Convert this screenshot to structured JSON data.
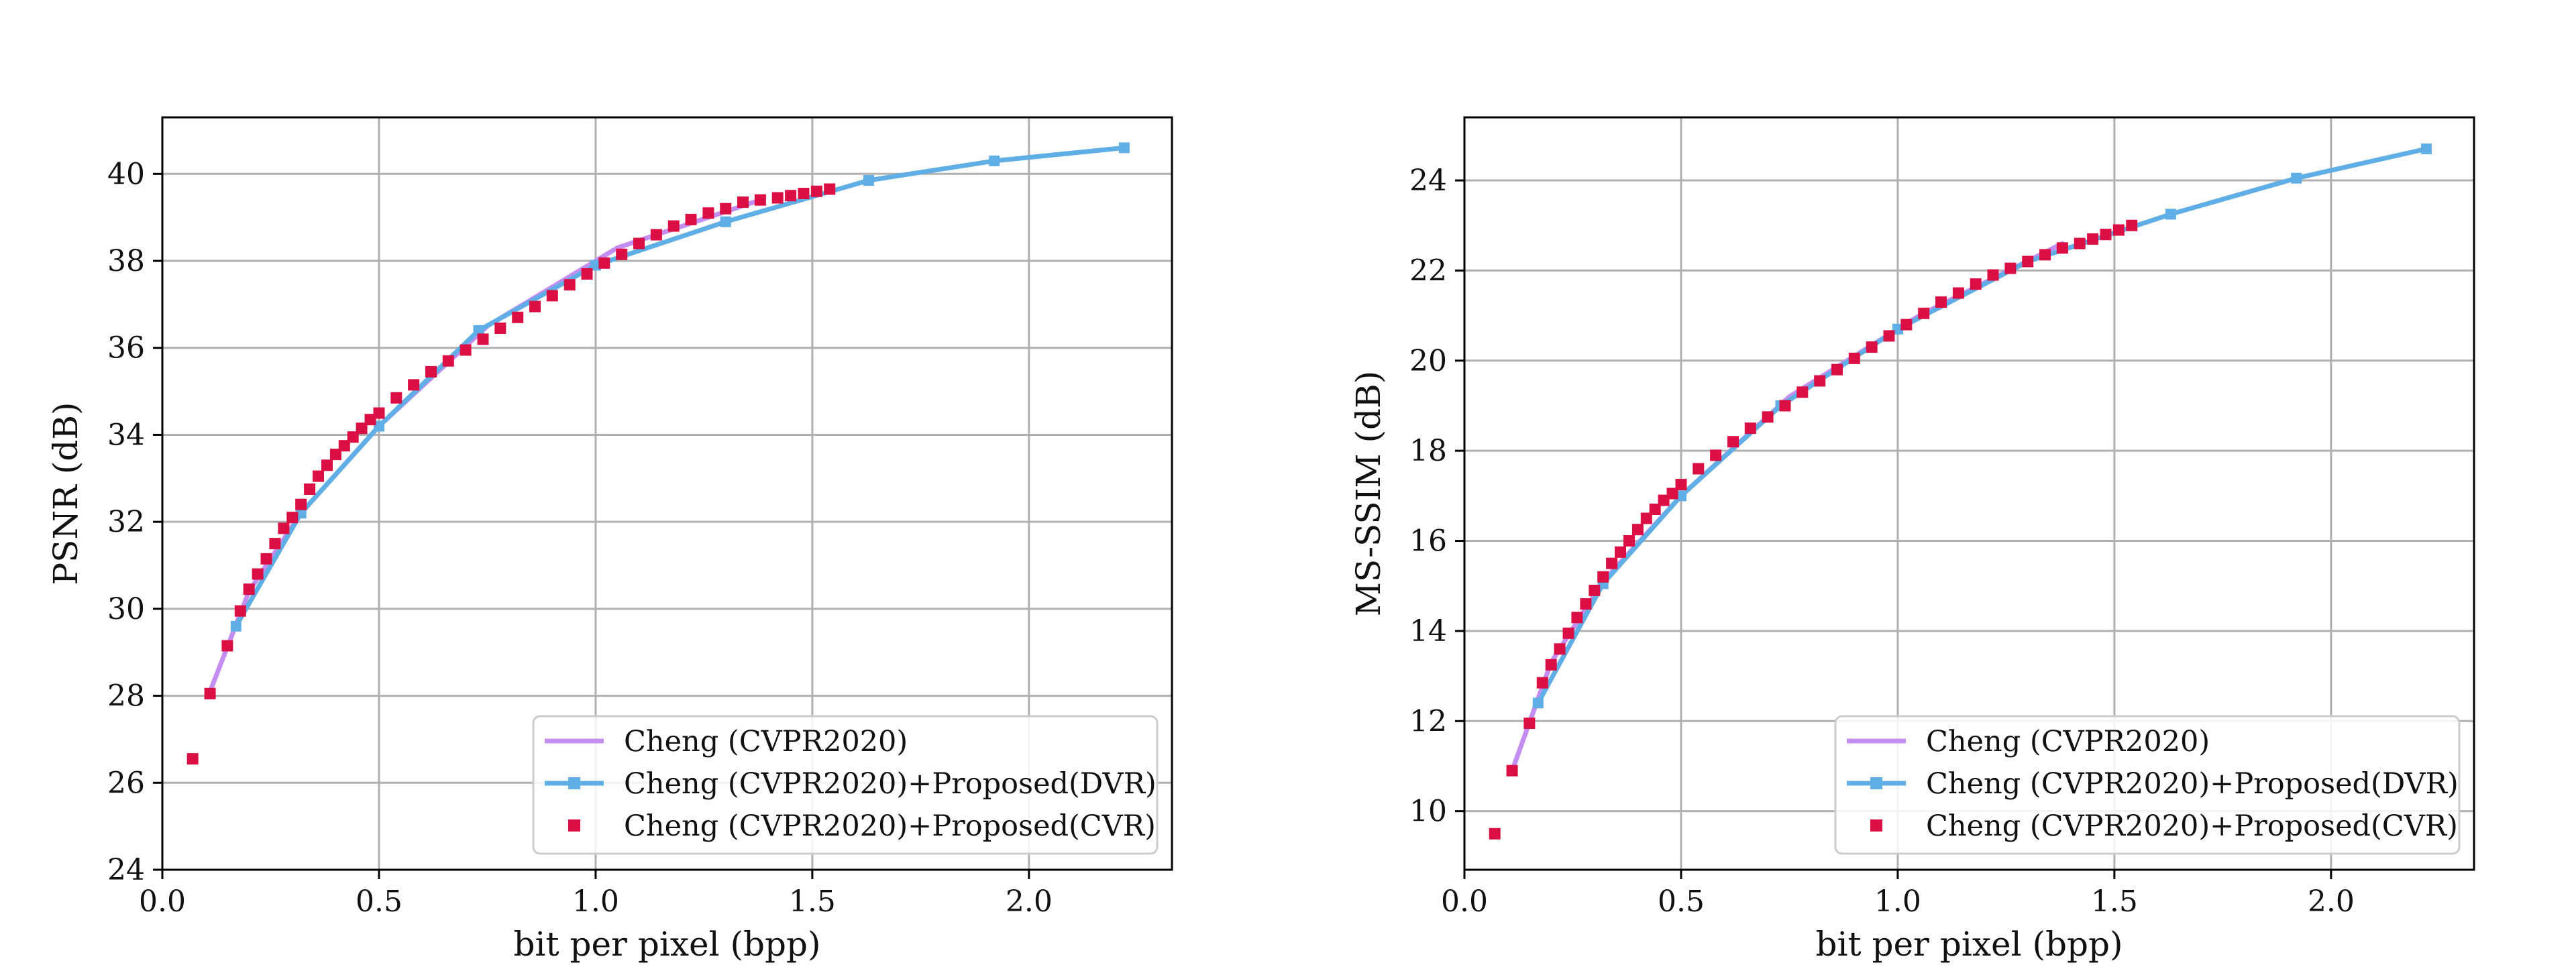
{
  "colors": {
    "cheng": "#c38df2",
    "dvr": "#60aee6",
    "cvr": "#dc0f45",
    "grid": "#b0b0b0",
    "axis": "#000000"
  },
  "chart_data": [
    {
      "type": "line",
      "title": "",
      "xlabel": "bit per pixel (bpp)",
      "ylabel": "PSNR (dB)",
      "xlim": [
        0.0,
        2.33
      ],
      "ylim": [
        24,
        41.3
      ],
      "xticks": [
        0.0,
        0.5,
        1.0,
        1.5,
        2.0
      ],
      "xtick_labels": [
        "0.0",
        "0.5",
        "1.0",
        "1.5",
        "2.0"
      ],
      "yticks": [
        24,
        26,
        28,
        30,
        32,
        34,
        36,
        38,
        40
      ],
      "ytick_labels": [
        "24",
        "26",
        "28",
        "30",
        "32",
        "34",
        "36",
        "38",
        "40"
      ],
      "grid": true,
      "legend_position": "lower-right",
      "series": [
        {
          "name": "Cheng (CVPR2020)",
          "style": "line",
          "x": [
            0.11,
            0.2,
            0.32,
            0.5,
            0.75,
            1.05,
            1.38
          ],
          "y": [
            28.1,
            30.4,
            32.2,
            34.2,
            36.5,
            38.3,
            39.4
          ]
        },
        {
          "name": "Cheng (CVPR2020)+Proposed(DVR)",
          "style": "line-marker",
          "x": [
            0.17,
            0.32,
            0.5,
            0.73,
            1.0,
            1.3,
            1.63,
            1.92,
            2.22
          ],
          "y": [
            29.6,
            32.2,
            34.2,
            36.4,
            37.9,
            38.9,
            39.85,
            40.3,
            40.6
          ]
        },
        {
          "name": "Cheng (CVPR2020)+Proposed(CVR)",
          "style": "scatter",
          "x": [
            0.07,
            0.11,
            0.15,
            0.18,
            0.2,
            0.22,
            0.24,
            0.26,
            0.28,
            0.3,
            0.32,
            0.34,
            0.36,
            0.38,
            0.4,
            0.42,
            0.44,
            0.46,
            0.48,
            0.5,
            0.54,
            0.58,
            0.62,
            0.66,
            0.7,
            0.74,
            0.78,
            0.82,
            0.86,
            0.9,
            0.94,
            0.98,
            1.02,
            1.06,
            1.1,
            1.14,
            1.18,
            1.22,
            1.26,
            1.3,
            1.34,
            1.38,
            1.42,
            1.45,
            1.48,
            1.51,
            1.54
          ],
          "y": [
            26.55,
            28.05,
            29.15,
            29.95,
            30.45,
            30.8,
            31.15,
            31.5,
            31.85,
            32.1,
            32.4,
            32.75,
            33.05,
            33.3,
            33.55,
            33.75,
            33.95,
            34.15,
            34.35,
            34.5,
            34.85,
            35.15,
            35.45,
            35.7,
            35.95,
            36.2,
            36.45,
            36.7,
            36.95,
            37.2,
            37.45,
            37.7,
            37.95,
            38.15,
            38.4,
            38.6,
            38.8,
            38.95,
            39.1,
            39.2,
            39.35,
            39.4,
            39.45,
            39.5,
            39.55,
            39.6,
            39.65
          ]
        }
      ]
    },
    {
      "type": "line",
      "title": "",
      "xlabel": "bit per pixel (bpp)",
      "ylabel": "MS-SSIM (dB)",
      "xlim": [
        0.0,
        2.33
      ],
      "ylim": [
        8.7,
        25.4
      ],
      "xticks": [
        0.0,
        0.5,
        1.0,
        1.5,
        2.0
      ],
      "xtick_labels": [
        "0.0",
        "0.5",
        "1.0",
        "1.5",
        "2.0"
      ],
      "yticks": [
        10,
        12,
        14,
        16,
        18,
        20,
        22,
        24
      ],
      "ytick_labels": [
        "10",
        "12",
        "14",
        "16",
        "18",
        "20",
        "22",
        "24"
      ],
      "grid": true,
      "legend_position": "lower-right",
      "series": [
        {
          "name": "Cheng (CVPR2020)",
          "style": "line",
          "x": [
            0.11,
            0.2,
            0.32,
            0.5,
            0.75,
            1.05,
            1.38
          ],
          "y": [
            10.9,
            13.3,
            15.1,
            17.0,
            19.2,
            21.0,
            22.6
          ]
        },
        {
          "name": "Cheng (CVPR2020)+Proposed(DVR)",
          "style": "line-marker",
          "x": [
            0.17,
            0.32,
            0.5,
            0.73,
            1.0,
            1.3,
            1.63,
            1.92,
            2.22
          ],
          "y": [
            12.4,
            15.05,
            17.0,
            19.0,
            20.7,
            22.2,
            23.25,
            24.05,
            24.7
          ]
        },
        {
          "name": "Cheng (CVPR2020)+Proposed(CVR)",
          "style": "scatter",
          "x": [
            0.07,
            0.11,
            0.15,
            0.18,
            0.2,
            0.22,
            0.24,
            0.26,
            0.28,
            0.3,
            0.32,
            0.34,
            0.36,
            0.38,
            0.4,
            0.42,
            0.44,
            0.46,
            0.48,
            0.5,
            0.54,
            0.58,
            0.62,
            0.66,
            0.7,
            0.74,
            0.78,
            0.82,
            0.86,
            0.9,
            0.94,
            0.98,
            1.02,
            1.06,
            1.1,
            1.14,
            1.18,
            1.22,
            1.26,
            1.3,
            1.34,
            1.38,
            1.42,
            1.45,
            1.48,
            1.51,
            1.54
          ],
          "y": [
            9.5,
            10.9,
            11.95,
            12.85,
            13.25,
            13.6,
            13.95,
            14.3,
            14.6,
            14.9,
            15.2,
            15.5,
            15.75,
            16.0,
            16.25,
            16.5,
            16.7,
            16.9,
            17.05,
            17.25,
            17.6,
            17.9,
            18.2,
            18.5,
            18.75,
            19.0,
            19.3,
            19.55,
            19.8,
            20.05,
            20.3,
            20.55,
            20.8,
            21.05,
            21.3,
            21.5,
            21.7,
            21.9,
            22.05,
            22.2,
            22.35,
            22.5,
            22.6,
            22.7,
            22.8,
            22.9,
            23.0
          ]
        }
      ]
    }
  ]
}
